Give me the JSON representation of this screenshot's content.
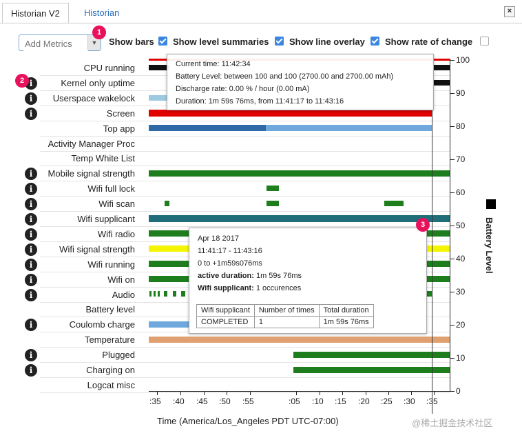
{
  "tabs": [
    {
      "label": "Historian V2",
      "active": true
    },
    {
      "label": "Historian",
      "active": false
    }
  ],
  "close_label": "×",
  "toolbar": {
    "add_metrics_placeholder": "Add Metrics",
    "dropdown_arrow": "▼",
    "options": [
      {
        "label": "Show bars",
        "checked": true
      },
      {
        "label": "Show level summaries",
        "checked": true
      },
      {
        "label": "Show line overlay",
        "checked": true
      },
      {
        "label": "Show rate of change",
        "checked": false
      }
    ]
  },
  "badges": [
    "1",
    "2",
    "3"
  ],
  "rows": [
    {
      "label": "CPU running",
      "info": false
    },
    {
      "label": "Kernel only uptime",
      "info": true
    },
    {
      "label": "Userspace wakelock",
      "info": true
    },
    {
      "label": "Screen",
      "info": true
    },
    {
      "label": "Top app",
      "info": false
    },
    {
      "label": "Activity Manager Proc",
      "info": false
    },
    {
      "label": "Temp White List",
      "info": false
    },
    {
      "label": "Mobile signal strength",
      "info": true
    },
    {
      "label": "Wifi full lock",
      "info": true
    },
    {
      "label": "Wifi scan",
      "info": true
    },
    {
      "label": "Wifi supplicant",
      "info": true
    },
    {
      "label": "Wifi radio",
      "info": true
    },
    {
      "label": "Wifi signal strength",
      "info": true
    },
    {
      "label": "Wifi running",
      "info": true
    },
    {
      "label": "Wifi on",
      "info": true
    },
    {
      "label": "Audio",
      "info": true
    },
    {
      "label": "Battery level",
      "info": false
    },
    {
      "label": "Coulomb charge",
      "info": true
    },
    {
      "label": "Temperature",
      "info": false
    },
    {
      "label": "Plugged",
      "info": true
    },
    {
      "label": "Charging on",
      "info": true
    },
    {
      "label": "Logcat misc",
      "info": false
    }
  ],
  "colors": {
    "cpu": "#111111",
    "screen_red": "#e00000",
    "top_app_dark": "#2f6aa8",
    "top_app_light": "#6fa8dc",
    "green": "#1e7e1e",
    "teal": "#1f6e7a",
    "yellow": "#f5f500",
    "coulomb": "#6fa8dc",
    "temperature": "#e0a070",
    "userspace": "#9ecae1"
  },
  "y_axis": {
    "title": "Battery Level",
    "ticks": [
      "100",
      "90",
      "80",
      "70",
      "60",
      "50",
      "40",
      "30",
      "20",
      "10",
      "0"
    ]
  },
  "x_axis": {
    "title": "Time (America/Los_Angeles PDT UTC-07:00)",
    "ticks": [
      ":35",
      ":40",
      ":45",
      ":50",
      ":55",
      ":05",
      ":10",
      ":15",
      ":20",
      ":25",
      ":30",
      ":35"
    ]
  },
  "tooltip1": {
    "lines": [
      "Current time: 11:42:34",
      "Battery Level: between 100 and 100 (2700.00 and 2700.00 mAh)",
      "Discharge rate: 0.00 % / hour (0.00 mA)",
      "Duration: 1m 59s 76ms, from 11:41:17 to 11:43:16"
    ]
  },
  "tooltip2": {
    "date": "Apr 18 2017",
    "range": "11:41:17 - 11:43:16",
    "offset": "0 to +1m59s076ms",
    "active_label": "active duration:",
    "active_value": " 1m 59s 76ms",
    "supp_label": "Wifi supplicant:",
    "supp_value": " 1 occurences",
    "table_headers": [
      "Wifi supplicant",
      "Number of times",
      "Total duration"
    ],
    "table_row": [
      "COMPLETED",
      "1",
      "1m 59s 76ms"
    ]
  },
  "watermark": "@稀土掘金技术社区"
}
